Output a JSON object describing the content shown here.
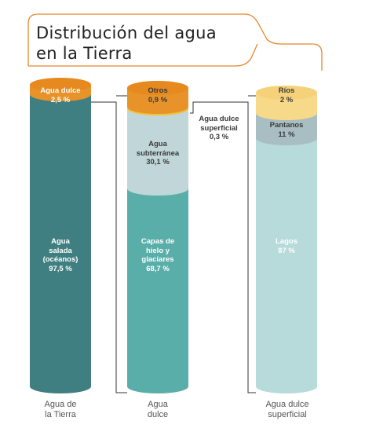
{
  "title": {
    "line1": "Distribución del agua",
    "line2": "en la Tierra"
  },
  "colors": {
    "accent": "#e8872a",
    "salt": "#3f7f81",
    "ice": "#5aaea9",
    "ground": "#c0d6d8",
    "surface_small": "#d3ecec",
    "lakes": "#b7dadb",
    "swamps": "#a9bec2",
    "rivers": "#f7d98a",
    "fresh": "#e8932a"
  },
  "columns": [
    {
      "caption": "Agua de\nla Tierra",
      "segments": [
        {
          "label": "Agua dulce\n2,5 %"
        },
        {
          "label": "Agua\nsalada\n(océanos)\n97,5 %"
        }
      ]
    },
    {
      "caption": "Agua\ndulce",
      "segments": [
        {
          "label": "Otros\n0,9 %"
        },
        {
          "label": "Agua\nsubterránea\n30,1 %"
        },
        {
          "label": "Capas de\nhielo y\nglaciares\n68,7 %"
        }
      ]
    },
    {
      "caption": "Agua dulce\nsuperficial",
      "segments": [
        {
          "label": "Ríos\n2 %"
        },
        {
          "label": "Pantanos\n11 %"
        },
        {
          "label": "Lagos\n87 %"
        }
      ]
    }
  ],
  "callout": {
    "label": "Agua dulce\nsuperficial\n0,3 %"
  }
}
